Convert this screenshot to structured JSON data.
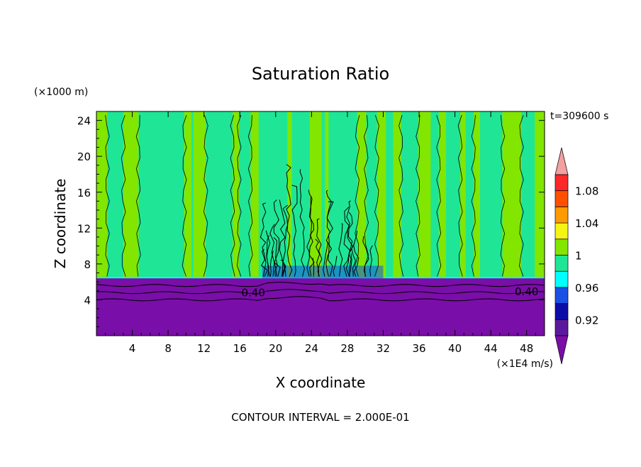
{
  "chart_data": {
    "type": "heatmap",
    "title": "Saturation Ratio",
    "xlabel": "X coordinate",
    "ylabel": "Z coordinate",
    "x_units": "(×1E4 m/s)",
    "y_units": "(×1000 m)",
    "time_label": "t=309600 s",
    "footer": "CONTOUR INTERVAL = 2.000E-01",
    "xlim": [
      0,
      50
    ],
    "ylim": [
      0,
      25
    ],
    "x_ticks": [
      4,
      8,
      12,
      16,
      20,
      24,
      28,
      32,
      36,
      40,
      44,
      48
    ],
    "y_ticks": [
      4,
      8,
      12,
      16,
      20,
      24
    ],
    "contour_labels": [
      {
        "text": "0.40",
        "x": 17.5,
        "z": 4.8
      },
      {
        "text": "0.40",
        "x": 48.0,
        "z": 4.9
      }
    ],
    "colorbar": {
      "levels": [
        0.9,
        0.92,
        0.94,
        0.96,
        0.98,
        1.0,
        1.02,
        1.04,
        1.06,
        1.08,
        1.1
      ],
      "tick_labels": [
        "0.92",
        "0.96",
        "1",
        "1.04",
        "1.08"
      ],
      "tick_values": [
        0.92,
        0.96,
        1.0,
        1.04,
        1.08
      ],
      "colors": [
        "#5b1a9e",
        "#0c0ca8",
        "#1a50e6",
        "#00ffff",
        "#1ee696",
        "#82e600",
        "#f5f514",
        "#ff9a00",
        "#ff5000",
        "#ff2828"
      ],
      "under_color": "#7a0ea8",
      "over_color": "#f2a0a0"
    },
    "fields": {
      "lower_layer_color": "#7a0ea8",
      "upper_colors": [
        "#1ee696",
        "#82e600"
      ],
      "boundary_height": 6.4
    }
  }
}
